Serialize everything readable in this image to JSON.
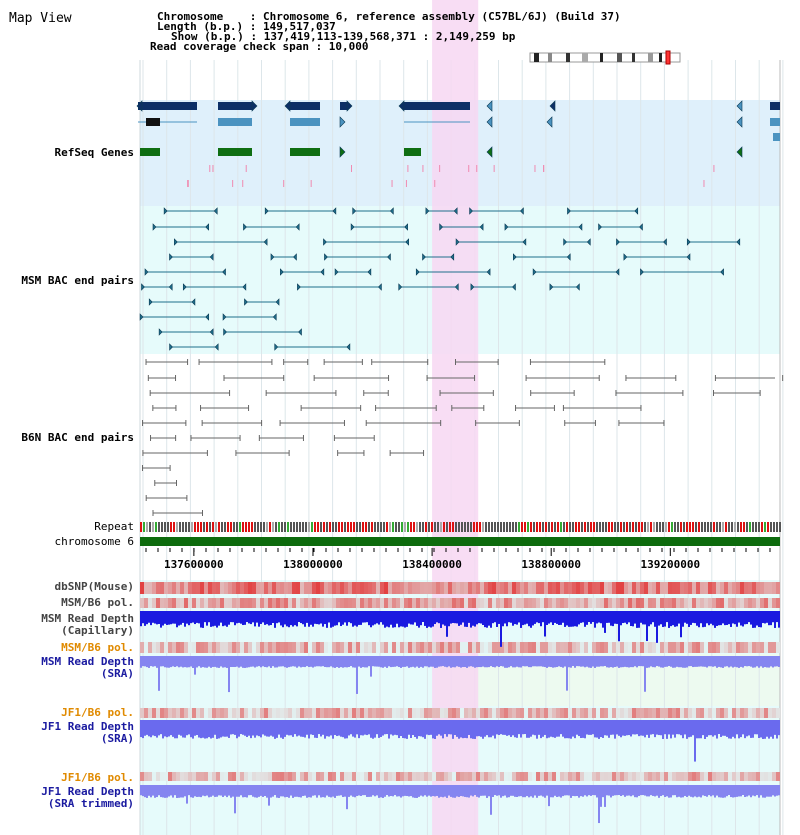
{
  "view": {
    "title": "Map View",
    "info_lines": [
      "Chromosome    : Chromosome 6, reference assembly (C57BL/6J) (Build 37)",
      "Length (b.p.) : 149,517,037",
      "Show (b.p.) : 137,419,113-139,568,371 : 2,149,259 bp",
      "Read coverage check span : 10,000"
    ],
    "range_start_bp": 137419113,
    "range_end_bp": 139568371,
    "highlight_bp": [
      138400000,
      138555000
    ]
  },
  "tracks": {
    "refseq": {
      "label": "RefSeq Genes",
      "color": "#1a1aa0"
    },
    "msm_bac": {
      "label": "MSM BAC end pairs",
      "color": "#1f6f8b"
    },
    "b6n_bac": {
      "label": "B6N BAC end pairs",
      "color": "#555555"
    },
    "repeat": {
      "label": "Repeat"
    },
    "chromosome": {
      "label": "chromosome 6"
    },
    "dbsnp": {
      "label": "dbSNP(Mouse)"
    },
    "msm_pol_cap": {
      "label": "MSM/B6 pol."
    },
    "msm_depth_cap": {
      "label": "MSM Read Depth\n(Capillary)"
    },
    "msm_pol_sra": {
      "label": "MSM/B6 pol.",
      "color": "#e08a00"
    },
    "msm_depth_sra": {
      "label": "MSM Read Depth\n(SRA)",
      "color": "#1a1aa0"
    },
    "jf1_pol": {
      "label": "JF1/B6 pol.",
      "color": "#e08a00"
    },
    "jf1_depth": {
      "label": "JF1 Read Depth\n(SRA)",
      "color": "#1a1aa0"
    },
    "jf1_pol2": {
      "label": "JF1/B6 pol.",
      "color": "#e08a00"
    },
    "jf1_depth_trim": {
      "label": "JF1 Read Depth\n(SRA trimmed)",
      "color": "#1a1aa0"
    }
  },
  "axis": {
    "ticks": [
      "137600000",
      "138000000",
      "138400000",
      "138800000",
      "139200000"
    ],
    "tick_values": [
      137600000,
      138000000,
      138400000,
      138800000,
      139200000
    ]
  },
  "colors": {
    "band_blue": "#dff0fb",
    "band_lightblue": "#e6fbfb",
    "band_green": "#edfaf0",
    "highlight": "#f7d7f2",
    "chromosome": "#0d6b0d",
    "refseq_dark": "#0d2f66",
    "refseq_mid": "#4b93c0",
    "refseq_green": "#0f6e12",
    "msm_pair": "#1f6f8b",
    "b6n_pair": "#666666",
    "depth_cap": "#1a1ae0",
    "depth_sra": "#8585f0",
    "depth_jf1": "#6a6aee",
    "snp_red": "#e23434"
  }
}
